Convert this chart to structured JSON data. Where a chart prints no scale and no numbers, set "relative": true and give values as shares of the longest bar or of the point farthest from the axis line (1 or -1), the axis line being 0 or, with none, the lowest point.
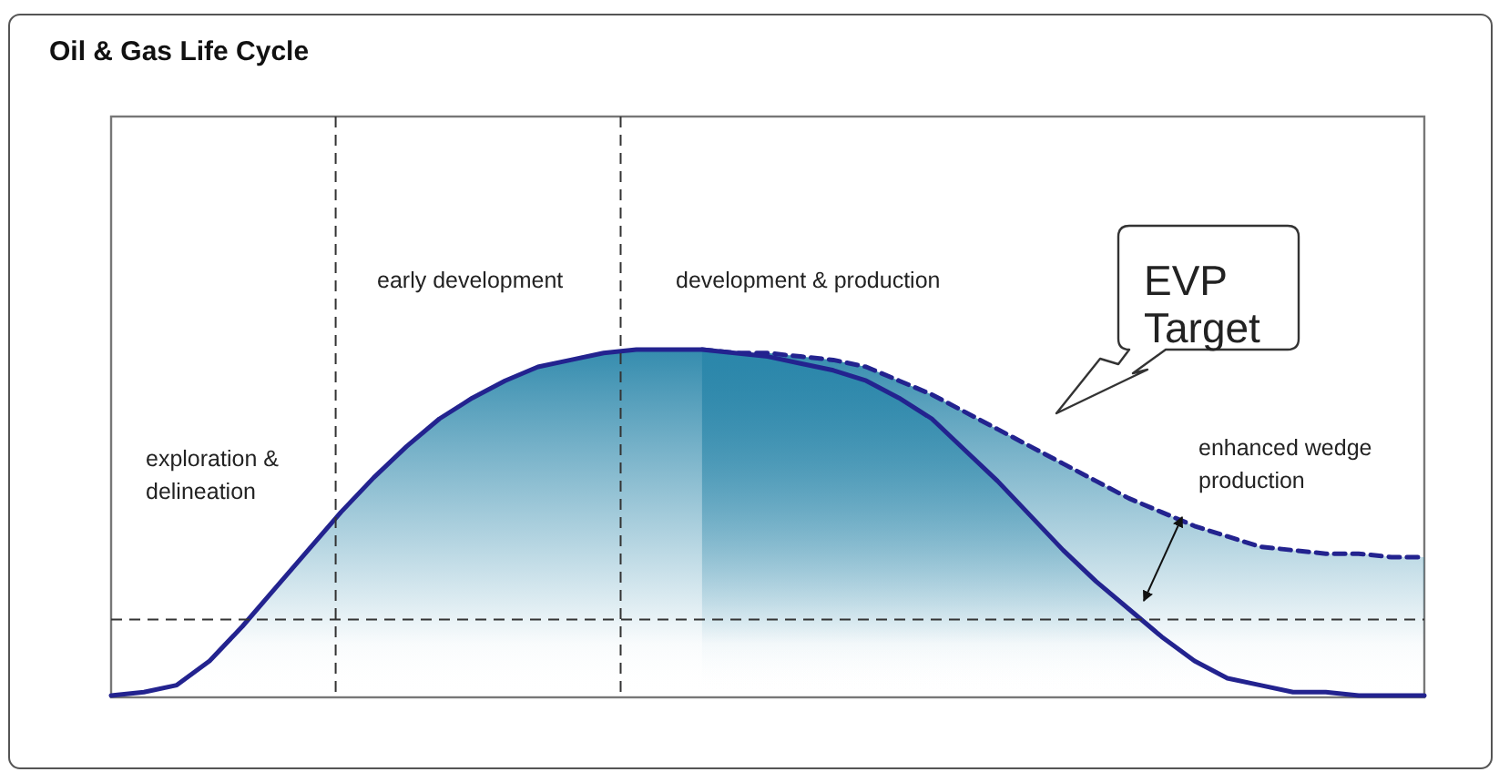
{
  "chart_data": {
    "type": "area",
    "title": "Oil & Gas Life Cycle",
    "relative": true,
    "categories": [
      null,
      null,
      null,
      null,
      null,
      null,
      null,
      null,
      null,
      null,
      null,
      null,
      null,
      null,
      null,
      null,
      null,
      null,
      null,
      null,
      null,
      null,
      null,
      null,
      null,
      null,
      null,
      null,
      null,
      null,
      null,
      null,
      null,
      null,
      null,
      null,
      null,
      null,
      null,
      null,
      null
    ],
    "series": [
      {
        "color": "#23238f",
        "line_style": "dashed",
        "values": [
          null,
          null,
          null,
          null,
          null,
          null,
          null,
          null,
          null,
          null,
          null,
          null,
          null,
          null,
          null,
          null,
          null,
          null,
          1.0,
          0.99,
          0.99,
          0.98,
          0.97,
          0.95,
          0.91,
          0.87,
          0.82,
          0.77,
          0.72,
          0.67,
          0.62,
          0.57,
          0.53,
          0.49,
          0.46,
          0.43,
          0.42,
          0.41,
          0.41,
          0.4,
          0.4
        ]
      },
      {
        "color": "#23238f",
        "line_style": "solid",
        "values": [
          0,
          0.01,
          0.03,
          0.1,
          0.2,
          0.31,
          0.42,
          0.53,
          0.63,
          0.72,
          0.8,
          0.86,
          0.91,
          0.95,
          0.97,
          0.99,
          1.0,
          1.0,
          1.0,
          0.99,
          0.98,
          0.96,
          0.94,
          0.91,
          0.86,
          0.8,
          0.71,
          0.62,
          0.52,
          0.42,
          0.33,
          0.25,
          0.17,
          0.1,
          0.05,
          0.03,
          0.01,
          0.01,
          0,
          0,
          0
        ]
      }
    ],
    "ref_lines": [
      {
        "axis": "y",
        "value": 0.22,
        "line_style": "dashed",
        "color": "#333333"
      }
    ],
    "annotations": [
      "exploration & delineation",
      "early development",
      "development & production",
      "enhanced wedge production",
      "EVP Target"
    ]
  }
}
